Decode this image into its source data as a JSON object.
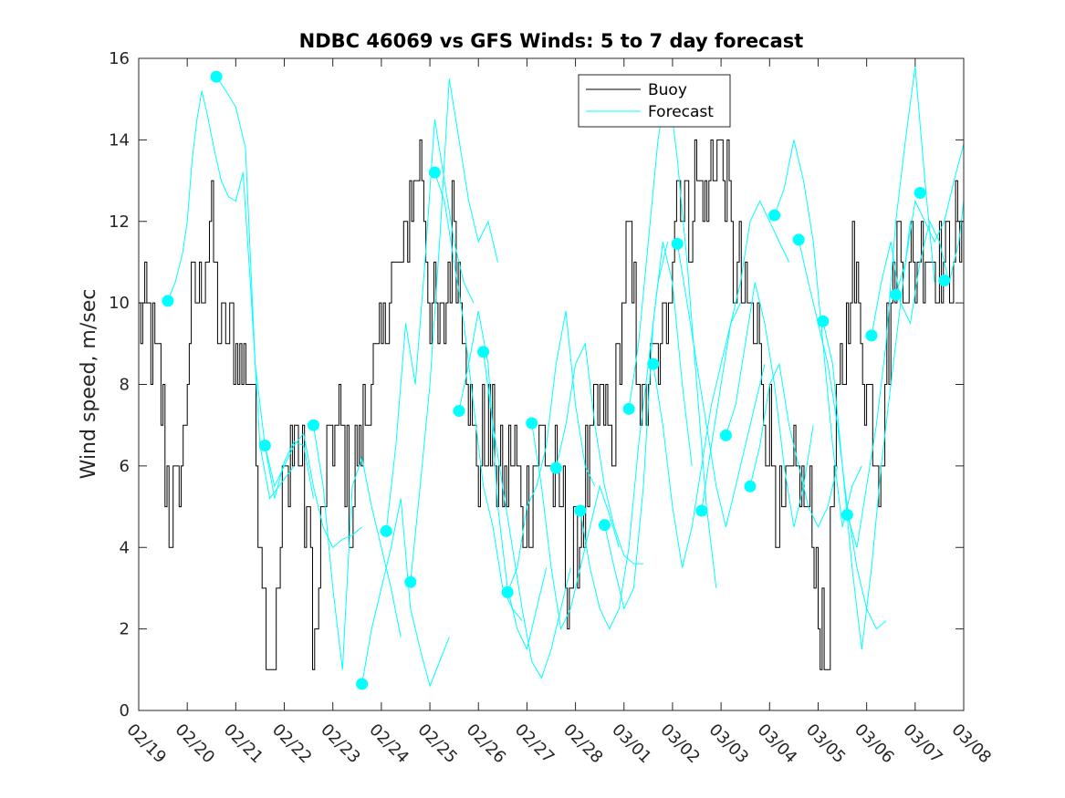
{
  "chart_data": {
    "type": "line",
    "title": "NDBC 46069 vs GFS Winds: 5 to 7 day forecast",
    "xlabel": "",
    "ylabel": "Wind speed, m/sec",
    "xlim": [
      0,
      17
    ],
    "ylim": [
      0,
      16
    ],
    "yticks": [
      0,
      2,
      4,
      6,
      8,
      10,
      12,
      14,
      16
    ],
    "xticks": [
      0,
      1,
      2,
      3,
      4,
      5,
      6,
      7,
      8,
      9,
      10,
      11,
      12,
      13,
      14,
      15,
      16,
      17
    ],
    "xticklabels": [
      "02/19",
      "02/20",
      "02/21",
      "02/22",
      "02/23",
      "02/24",
      "02/25",
      "02/26",
      "02/27",
      "02/28",
      "03/01",
      "03/02",
      "03/03",
      "03/04",
      "03/05",
      "03/06",
      "03/07",
      "03/08"
    ],
    "legend": {
      "location": "top-center",
      "entries": [
        "Buoy",
        "Forecast"
      ]
    },
    "colors": {
      "buoy": "#000000",
      "forecast": "#00ffff",
      "markers": "#00ffff"
    },
    "buoy_keypoints": {
      "x": [
        0,
        0.3,
        0.45,
        0.6,
        0.75,
        0.9,
        1.0,
        1.3,
        1.5,
        1.6,
        1.75,
        1.95,
        2.15,
        2.3,
        2.45,
        2.6,
        2.75,
        2.85,
        2.95,
        3.1,
        3.3,
        3.5,
        3.65,
        3.8,
        4.0,
        4.2,
        4.35,
        4.5,
        4.75,
        5.0,
        5.2,
        5.45,
        5.6,
        5.8,
        6.0,
        6.15,
        6.3,
        6.5,
        6.7,
        6.85,
        7.0,
        7.2,
        7.4,
        7.55,
        7.7,
        7.9,
        8.1,
        8.3,
        8.5,
        8.7,
        8.85,
        9.0,
        9.2,
        9.4,
        9.6,
        9.75,
        9.9,
        10.05,
        10.2,
        10.4,
        10.55,
        10.75,
        10.95,
        11.1,
        11.3,
        11.5,
        11.7,
        11.9,
        12.05,
        12.25,
        12.5,
        12.75,
        13.0,
        13.2,
        13.45,
        13.6,
        13.75,
        13.95,
        14.15,
        14.3,
        14.5,
        14.65,
        14.8,
        14.95,
        15.1,
        15.25,
        15.4,
        15.55,
        15.7,
        15.85,
        16.0,
        16.15,
        16.3,
        16.45,
        16.6,
        16.8,
        17.0
      ],
      "y": [
        9.5,
        9,
        8,
        5,
        5,
        6,
        9,
        11,
        12,
        10,
        9,
        9,
        8.5,
        8.5,
        5,
        2.5,
        1.2,
        3,
        5,
        6.5,
        6.5,
        4,
        1.5,
        5,
        7,
        6.5,
        5,
        6,
        8,
        9,
        10.5,
        11,
        12.5,
        13.5,
        10,
        9,
        10,
        12,
        10,
        7,
        6,
        7,
        6,
        5.5,
        6.5,
        4.5,
        5.5,
        6.5,
        6,
        5,
        3.5,
        4,
        5.5,
        7,
        7.5,
        6,
        9,
        11.5,
        10,
        7,
        8.5,
        8.5,
        11,
        13,
        12,
        13,
        12.5,
        14,
        13.5,
        11,
        10,
        9,
        7,
        4.5,
        5.5,
        6,
        5,
        4,
        0.5,
        5.5,
        8.5,
        11,
        10,
        8.5,
        7.5,
        6,
        8.5,
        10.5,
        11.5,
        10.5,
        11,
        11.5,
        11.5,
        11,
        11,
        11.5,
        11
      ]
    },
    "forecast_series": [
      {
        "name": "Forecast",
        "x": [
          0.6,
          0.75,
          0.9,
          1.0,
          1.1,
          1.2,
          1.3,
          1.4,
          1.55,
          1.7,
          1.85,
          2.0,
          2.15,
          2.3,
          2.5,
          2.7,
          2.95,
          3.2
        ],
        "y": [
          10.05,
          10.5,
          11.2,
          12.0,
          13.5,
          14.5,
          15.2,
          14.7,
          13.8,
          13.0,
          12.6,
          12.5,
          13.2,
          10.5,
          6.5,
          5.2,
          5.6,
          6.0
        ]
      },
      {
        "name": "Forecast",
        "x": [
          1.6,
          1.8,
          2.0,
          2.2,
          2.4,
          2.6,
          2.8,
          3.0,
          3.2,
          3.4,
          3.6
        ],
        "y": [
          15.55,
          15.2,
          14.8,
          13.8,
          8.5,
          6.5,
          5.2,
          6.1,
          6.6,
          6.5,
          5.2
        ]
      },
      {
        "name": "Forecast",
        "x": [
          2.6,
          2.8,
          3.0,
          3.2,
          3.4,
          3.6,
          3.8,
          4.0,
          4.2,
          4.4,
          4.6
        ],
        "y": [
          6.5,
          5.5,
          6.0,
          6.5,
          6.8,
          5.5,
          4.5,
          4.0,
          4.2,
          4.3,
          4.5
        ]
      },
      {
        "name": "Forecast",
        "x": [
          3.6,
          3.8,
          4.0,
          4.2,
          4.4,
          4.6,
          4.8,
          5.0,
          5.2,
          5.4
        ],
        "y": [
          7.0,
          5.5,
          3.0,
          1.0,
          5.5,
          6.2,
          5.0,
          4.0,
          3.0,
          1.8
        ]
      },
      {
        "name": "Forecast",
        "x": [
          4.6,
          4.8,
          5.0,
          5.2,
          5.4,
          5.6,
          5.8,
          6.0,
          6.2,
          6.4
        ],
        "y": [
          0.65,
          2.0,
          3.0,
          4.0,
          5.2,
          2.5,
          1.5,
          0.6,
          1.2,
          1.8
        ]
      },
      {
        "name": "Forecast",
        "x": [
          5.1,
          5.3,
          5.5,
          5.7,
          5.9,
          6.1,
          6.3,
          6.5,
          6.7,
          6.9
        ],
        "y": [
          4.4,
          6.5,
          9.5,
          8.0,
          11.0,
          14.5,
          13.0,
          11.5,
          10.5,
          10.0
        ]
      },
      {
        "name": "Forecast",
        "x": [
          5.6,
          5.8,
          6.0,
          6.2,
          6.4,
          6.6,
          6.8,
          7.0,
          7.2,
          7.4
        ],
        "y": [
          3.15,
          5.5,
          8.0,
          11.5,
          15.5,
          14.0,
          12.5,
          11.5,
          12.0,
          11.0
        ]
      },
      {
        "name": "Forecast",
        "x": [
          6.1,
          6.3,
          6.5,
          6.7,
          6.9,
          7.1,
          7.3,
          7.5,
          7.7,
          7.9
        ],
        "y": [
          13.2,
          12.5,
          11.0,
          9.5,
          7.5,
          5.5,
          4.5,
          3.0,
          2.5,
          2.2
        ]
      },
      {
        "name": "Forecast",
        "x": [
          6.6,
          6.8,
          7.0,
          7.2,
          7.4,
          7.6,
          7.8,
          8.0,
          8.2,
          8.4
        ],
        "y": [
          7.35,
          8.5,
          9.8,
          8.5,
          5.0,
          3.0,
          2.0,
          1.5,
          2.5,
          3.5
        ]
      },
      {
        "name": "Forecast",
        "x": [
          7.1,
          7.3,
          7.5,
          7.7,
          7.9,
          8.1,
          8.3,
          8.5,
          8.7,
          8.9
        ],
        "y": [
          8.8,
          7.0,
          5.5,
          4.0,
          2.5,
          1.2,
          0.8,
          1.5,
          2.5,
          3.5
        ]
      },
      {
        "name": "Forecast",
        "x": [
          7.6,
          7.8,
          8.0,
          8.2,
          8.4,
          8.6,
          8.8,
          9.0,
          9.2,
          9.4
        ],
        "y": [
          2.9,
          3.5,
          5.0,
          5.5,
          6.5,
          8.5,
          9.8,
          7.5,
          6.0,
          5.5
        ]
      },
      {
        "name": "Forecast",
        "x": [
          8.1,
          8.3,
          8.5,
          8.7,
          8.9,
          9.1,
          9.3,
          9.5,
          9.7,
          9.9
        ],
        "y": [
          7.05,
          5.5,
          3.5,
          2.0,
          2.5,
          3.5,
          4.5,
          5.5,
          4.8,
          4.0
        ]
      },
      {
        "name": "Forecast",
        "x": [
          8.6,
          8.8,
          9.0,
          9.2,
          9.4,
          9.6,
          9.8,
          10.0,
          10.2,
          10.4
        ],
        "y": [
          5.95,
          7.0,
          8.5,
          9.0,
          7.0,
          5.5,
          4.5,
          3.8,
          3.6,
          3.6
        ]
      },
      {
        "name": "Forecast",
        "x": [
          9.1,
          9.3,
          9.5,
          9.7,
          9.9,
          10.1,
          10.3,
          10.5,
          10.7,
          10.9
        ],
        "y": [
          4.9,
          3.5,
          2.5,
          2.0,
          2.5,
          4.0,
          6.5,
          8.5,
          10.5,
          11.5
        ]
      },
      {
        "name": "Forecast",
        "x": [
          9.6,
          9.8,
          10.0,
          10.2,
          10.4,
          10.6,
          10.8,
          11.0,
          11.2,
          11.4
        ],
        "y": [
          4.55,
          3.5,
          2.5,
          3.0,
          5.5,
          9.5,
          11.5,
          10.5,
          8.0,
          6.0
        ]
      },
      {
        "name": "Forecast",
        "x": [
          10.1,
          10.3,
          10.5,
          10.7,
          10.9,
          11.1,
          11.3,
          11.5,
          11.7,
          11.9
        ],
        "y": [
          7.4,
          9.0,
          11.5,
          14.0,
          15.5,
          13.5,
          11.0,
          8.0,
          5.0,
          3.0
        ]
      },
      {
        "name": "Forecast",
        "x": [
          10.6,
          10.8,
          11.0,
          11.2,
          11.4,
          11.6,
          11.8,
          12.0,
          12.2,
          12.4
        ],
        "y": [
          8.5,
          7.0,
          5.0,
          3.5,
          4.5,
          6.0,
          7.5,
          8.5,
          9.5,
          10.0
        ]
      },
      {
        "name": "Forecast",
        "x": [
          11.1,
          11.3,
          11.5,
          11.7,
          11.9,
          12.1,
          12.3,
          12.5,
          12.7,
          12.9
        ],
        "y": [
          11.45,
          10.0,
          8.5,
          7.0,
          5.5,
          4.5,
          5.5,
          6.5,
          7.5,
          8.5
        ]
      },
      {
        "name": "Forecast",
        "x": [
          11.6,
          11.8,
          12.0,
          12.2,
          12.4,
          12.6,
          12.8,
          13.0,
          13.2,
          13.4
        ],
        "y": [
          4.9,
          6.5,
          8.0,
          9.5,
          10.5,
          12.0,
          12.5,
          12.0,
          11.5,
          11.0
        ]
      },
      {
        "name": "Forecast",
        "x": [
          12.1,
          12.3,
          12.5,
          12.7,
          12.9,
          13.1,
          13.3,
          13.5,
          13.7,
          13.9
        ],
        "y": [
          6.75,
          7.5,
          9.0,
          10.5,
          9.5,
          8.0,
          6.0,
          4.5,
          5.5,
          7.0
        ]
      },
      {
        "name": "Forecast",
        "x": [
          12.6,
          12.8,
          13.0,
          13.2,
          13.4,
          13.6,
          13.8,
          14.0,
          14.2,
          14.4
        ],
        "y": [
          5.5,
          6.5,
          8.0,
          8.5,
          7.0,
          6.0,
          5.0,
          4.5,
          5.0,
          6.0
        ]
      },
      {
        "name": "Forecast",
        "x": [
          13.1,
          13.3,
          13.5,
          13.7,
          13.9,
          14.1,
          14.3,
          14.5,
          14.7,
          14.9
        ],
        "y": [
          12.15,
          12.8,
          14.0,
          13.0,
          11.5,
          9.0,
          6.5,
          4.5,
          5.5,
          6.0
        ]
      },
      {
        "name": "Forecast",
        "x": [
          13.6,
          13.8,
          14.0,
          14.2,
          14.4,
          14.6,
          14.8,
          15.0,
          15.2,
          15.4
        ],
        "y": [
          11.55,
          10.5,
          9.5,
          8.5,
          7.0,
          5.0,
          3.5,
          2.5,
          2.0,
          2.2
        ]
      },
      {
        "name": "Forecast",
        "x": [
          14.1,
          14.3,
          14.5,
          14.7,
          14.9,
          15.1,
          15.3,
          15.5,
          15.7,
          15.9
        ],
        "y": [
          9.55,
          8.5,
          6.0,
          3.5,
          1.5,
          3.5,
          6.0,
          8.0,
          10.0,
          12.0
        ]
      },
      {
        "name": "Forecast",
        "x": [
          14.6,
          14.8,
          15.0,
          15.2,
          15.4,
          15.6,
          15.8,
          16.0,
          16.2,
          16.4
        ],
        "y": [
          4.8,
          4.0,
          5.5,
          7.0,
          9.0,
          12.0,
          14.0,
          15.8,
          13.0,
          10.5
        ]
      },
      {
        "name": "Forecast",
        "x": [
          15.1,
          15.3,
          15.5,
          15.7,
          15.9,
          16.1,
          16.3,
          16.5,
          16.7,
          16.9,
          17.0
        ],
        "y": [
          9.2,
          10.5,
          11.5,
          10.0,
          9.5,
          11.0,
          12.0,
          11.5,
          10.5,
          11.5,
          12.5
        ]
      },
      {
        "name": "Forecast",
        "x": [
          15.6,
          15.8,
          16.0,
          16.2,
          16.4,
          16.6,
          16.8,
          17.0
        ],
        "y": [
          10.2,
          11.0,
          12.5,
          12.0,
          11.5,
          12.0,
          13.0,
          13.9
        ]
      }
    ],
    "forecast_markers": {
      "x": [
        0.6,
        1.6,
        2.6,
        3.6,
        4.6,
        5.1,
        5.6,
        6.1,
        6.6,
        7.1,
        7.6,
        8.1,
        8.6,
        9.1,
        9.6,
        10.1,
        10.6,
        11.1,
        11.6,
        12.1,
        12.6,
        13.1,
        13.6,
        14.1,
        14.6,
        15.1,
        15.6,
        16.1,
        16.6
      ],
      "y": [
        10.05,
        15.55,
        6.5,
        7.0,
        0.65,
        4.4,
        3.15,
        13.2,
        7.35,
        8.8,
        2.9,
        7.05,
        5.95,
        4.9,
        4.55,
        7.4,
        8.5,
        11.45,
        4.9,
        6.75,
        5.5,
        12.15,
        11.55,
        9.55,
        4.8,
        9.2,
        10.2,
        12.7,
        10.55
      ]
    }
  }
}
